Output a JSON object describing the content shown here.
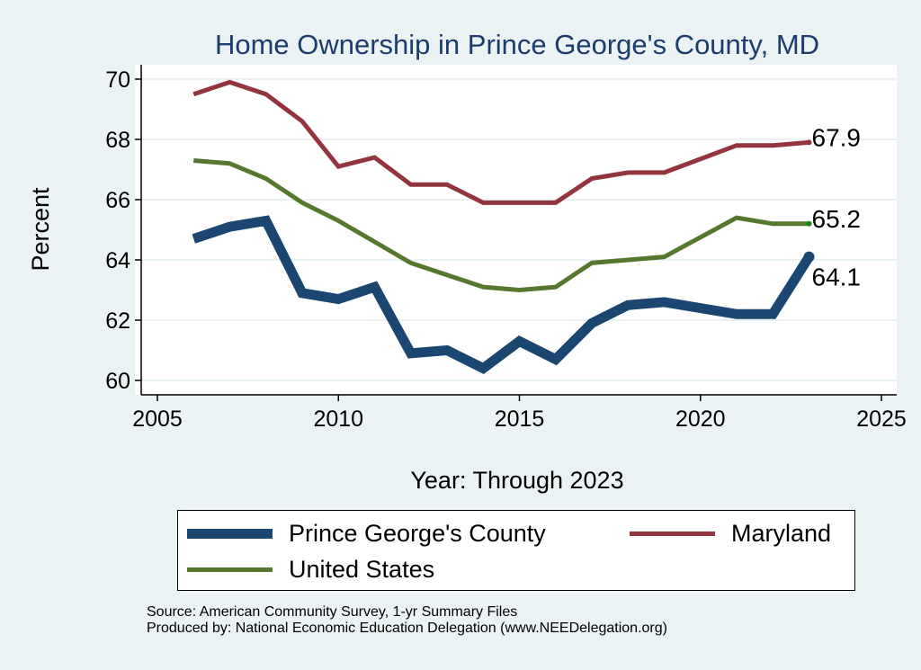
{
  "chart_data": {
    "type": "line",
    "title": "Home Ownership in Prince George's County, MD",
    "xlabel": "Year: Through 2023",
    "ylabel": "Percent",
    "xlim": [
      2005,
      2025
    ],
    "ylim": [
      60,
      70
    ],
    "xticks": [
      2005,
      2010,
      2015,
      2020,
      2025
    ],
    "yticks": [
      60,
      62,
      64,
      66,
      68,
      70
    ],
    "grid": true,
    "legend_position": "bottom",
    "x": [
      2006,
      2007,
      2008,
      2009,
      2010,
      2011,
      2012,
      2013,
      2014,
      2015,
      2016,
      2017,
      2018,
      2019,
      2021,
      2022,
      2023
    ],
    "series": [
      {
        "name": "Prince George's County",
        "color": "#1b4670",
        "width": 11,
        "values": [
          64.7,
          65.1,
          65.3,
          62.9,
          62.7,
          63.1,
          60.9,
          61.0,
          60.4,
          61.3,
          60.7,
          61.9,
          62.5,
          62.6,
          62.2,
          62.2,
          64.1
        ],
        "end_label": "64.1"
      },
      {
        "name": "Maryland",
        "color": "#93353e",
        "width": 5,
        "values": [
          69.5,
          69.9,
          69.5,
          68.6,
          67.1,
          67.4,
          66.5,
          66.5,
          65.9,
          65.9,
          65.9,
          66.7,
          66.9,
          66.9,
          67.8,
          67.8,
          67.9
        ],
        "end_label": "67.9"
      },
      {
        "name": "United States",
        "color": "#55772e",
        "width": 5,
        "values": [
          67.3,
          67.2,
          66.7,
          65.9,
          65.3,
          64.6,
          63.9,
          63.5,
          63.1,
          63.0,
          63.1,
          63.9,
          64.0,
          64.1,
          65.4,
          65.2,
          65.2
        ],
        "end_label": "65.2"
      }
    ],
    "notes": [
      "Source: American Community Survey, 1-yr Summary Files",
      "Produced by: National Economic Education Delegation (www.NEEDelegation.org)"
    ]
  }
}
